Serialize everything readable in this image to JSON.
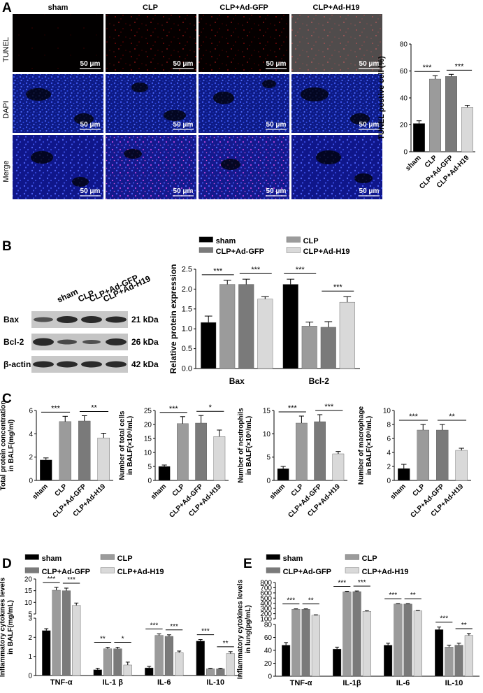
{
  "colors": {
    "sham": "#000000",
    "clp": "#9b9b9b",
    "gfp": "#7a7a7a",
    "h19": "#d9d9d9"
  },
  "panels": {
    "A": "A",
    "B": "B",
    "C": "C",
    "D": "D",
    "E": "E"
  },
  "micro": {
    "columns": [
      "sham",
      "CLP",
      "CLP+Ad-GFP",
      "CLP+Ad-H19"
    ],
    "rows": [
      "TUNEL",
      "DAPI",
      "Merge"
    ],
    "scale": "50 μm"
  },
  "legend_groups": [
    "sham",
    "CLP",
    "CLP+Ad-GFP",
    "CLP+Ad-H19"
  ],
  "western": {
    "lanes": [
      "sham",
      "CLP",
      "CLP+Ad-GFP",
      "CLP+Ad-H19"
    ],
    "proteins": [
      "Bax",
      "Bcl-2",
      "β-actin"
    ],
    "sizes": [
      "21 kDa",
      "26 kDa",
      "42 kDa"
    ]
  },
  "chart_data": [
    {
      "id": "tunel",
      "type": "bar",
      "ylabel": "TUNEL postive cell (%)",
      "categories": [
        "sham",
        "CLP",
        "CLP+Ad-GFP",
        "CLP+Ad-H19"
      ],
      "values": [
        21,
        54,
        56,
        33
      ],
      "errors": [
        2,
        2.5,
        1.5,
        1.5
      ],
      "ylim": [
        0,
        80
      ],
      "yticks": [
        0,
        20,
        40,
        60,
        80
      ],
      "sig": [
        {
          "from": 0,
          "to": 1,
          "label": "***"
        },
        {
          "from": 2,
          "to": 3,
          "label": "***"
        }
      ]
    },
    {
      "id": "protein",
      "type": "bar",
      "ylabel": "Relative protein expression",
      "categories": [
        "Bax",
        "Bcl-2"
      ],
      "series": [
        {
          "name": "sham",
          "values": [
            1.16,
            2.12
          ],
          "errors": [
            0.16,
            0.13
          ]
        },
        {
          "name": "CLP",
          "values": [
            2.12,
            1.07
          ],
          "errors": [
            0.1,
            0.1
          ]
        },
        {
          "name": "CLP+Ad-GFP",
          "values": [
            2.12,
            1.04
          ],
          "errors": [
            0.13,
            0.14
          ]
        },
        {
          "name": "CLP+Ad-H19",
          "values": [
            1.75,
            1.67
          ],
          "errors": [
            0.06,
            0.14
          ]
        }
      ],
      "ylim": [
        0,
        2.5
      ],
      "yticks": [
        0,
        0.5,
        1.0,
        1.5,
        2.0,
        2.5
      ],
      "sig": [
        {
          "cat": 0,
          "from": 0,
          "to": 1,
          "label": "***"
        },
        {
          "cat": 0,
          "from": 2,
          "to": 3,
          "label": "***"
        },
        {
          "cat": 1,
          "from": 0,
          "to": 1,
          "label": "***"
        },
        {
          "cat": 1,
          "from": 2,
          "to": 3,
          "label": "***"
        }
      ]
    },
    {
      "id": "c1",
      "type": "bar",
      "ylabel": [
        "Total protein concentration",
        "in BALF(mg/ml)"
      ],
      "categories": [
        "sham",
        "CLP",
        "CLP+Ad-GFP",
        "CLP+Ad-H19"
      ],
      "values": [
        1.75,
        5.05,
        5.1,
        3.65
      ],
      "errors": [
        0.18,
        0.45,
        0.45,
        0.4
      ],
      "ylim": [
        0,
        6
      ],
      "yticks": [
        0,
        2,
        4,
        6
      ],
      "sig": [
        {
          "from": 0,
          "to": 1,
          "label": "***"
        },
        {
          "from": 2,
          "to": 3,
          "label": "**"
        }
      ]
    },
    {
      "id": "c2",
      "type": "bar",
      "ylabel": [
        "Number of total cells",
        "in BALF(×10⁸/mL)"
      ],
      "categories": [
        "sham",
        "CLP",
        "CLP+Ad-GFP",
        "CLP+Ad-H19"
      ],
      "values": [
        5,
        20.3,
        20.5,
        15.7
      ],
      "errors": [
        0.5,
        2.5,
        2.7,
        2.3
      ],
      "ylim": [
        0,
        25
      ],
      "yticks": [
        0,
        5,
        10,
        15,
        20,
        25
      ],
      "sig": [
        {
          "from": 0,
          "to": 1,
          "label": "***"
        },
        {
          "from": 2,
          "to": 3,
          "label": "*"
        }
      ]
    },
    {
      "id": "c3",
      "type": "bar",
      "ylabel": [
        "Number of neutrophils",
        "in BALF(×10⁸/mL)"
      ],
      "categories": [
        "sham",
        "CLP",
        "CLP+Ad-GFP",
        "CLP+Ad-H19"
      ],
      "values": [
        2.5,
        12.3,
        12.6,
        5.7
      ],
      "errors": [
        0.5,
        1.5,
        1.5,
        0.5
      ],
      "ylim": [
        0,
        15
      ],
      "yticks": [
        0,
        5,
        10,
        15
      ],
      "sig": [
        {
          "from": 0,
          "to": 1,
          "label": "***"
        },
        {
          "from": 2,
          "to": 3,
          "label": "***"
        }
      ]
    },
    {
      "id": "c4",
      "type": "bar",
      "ylabel": [
        "Number of macrophage",
        "in BALF(×10⁸/mL)"
      ],
      "categories": [
        "sham",
        "CLP",
        "CLP+Ad-GFP",
        "CLP+Ad-H19"
      ],
      "values": [
        1.7,
        7.2,
        7.2,
        4.3
      ],
      "errors": [
        0.6,
        0.8,
        0.8,
        0.3
      ],
      "ylim": [
        0,
        10
      ],
      "yticks": [
        0,
        2,
        4,
        6,
        8,
        10
      ],
      "sig": [
        {
          "from": 0,
          "to": 1,
          "label": "***"
        },
        {
          "from": 2,
          "to": 3,
          "label": "**"
        }
      ]
    },
    {
      "id": "d",
      "type": "bar",
      "ylabel": [
        "Inflammatory cytokines levels",
        "in BALF(mg/mL)"
      ],
      "categories": [
        "TNF-α",
        "IL-1 β",
        "IL-6",
        "IL-10"
      ],
      "series": [
        {
          "name": "sham",
          "values": [
            2.35,
            0.3,
            0.4,
            1.8
          ],
          "errors": [
            0.1,
            0.08,
            0.08,
            0.08
          ]
        },
        {
          "name": "CLP",
          "values": [
            15.2,
            1.4,
            2.1,
            0.35
          ],
          "errors": [
            1.2,
            0.08,
            0.08,
            0.03
          ]
        },
        {
          "name": "CLP+Ad-GFP",
          "values": [
            15,
            1.4,
            2.05,
            0.35
          ],
          "errors": [
            1.1,
            0.08,
            0.08,
            0.03
          ]
        },
        {
          "name": "CLP+Ad-H19",
          "values": [
            8.7,
            0.55,
            1.2,
            1.15
          ],
          "errors": [
            1.0,
            0.15,
            0.08,
            0.1
          ]
        }
      ],
      "broken_axis": true,
      "yticks_low": [
        0,
        1,
        2,
        3
      ],
      "yticks_high": [
        5,
        10,
        15,
        20
      ],
      "sig": [
        {
          "cat": 0,
          "from": 0,
          "to": 1,
          "label": "***"
        },
        {
          "cat": 0,
          "from": 2,
          "to": 3,
          "label": "***"
        },
        {
          "cat": 1,
          "from": 0,
          "to": 1,
          "label": "**"
        },
        {
          "cat": 1,
          "from": 2,
          "to": 3,
          "label": "*"
        },
        {
          "cat": 2,
          "from": 0,
          "to": 1,
          "label": "***"
        },
        {
          "cat": 2,
          "from": 2,
          "to": 3,
          "label": "***"
        },
        {
          "cat": 3,
          "from": 0,
          "to": 1,
          "label": "***"
        },
        {
          "cat": 3,
          "from": 2,
          "to": 3,
          "label": "**"
        }
      ]
    },
    {
      "id": "e",
      "type": "bar",
      "ylabel": [
        "Inflammatory cytokines levels",
        "in lung(pg/mL)"
      ],
      "categories": [
        "TNF-α",
        "IL-1β",
        "IL-6",
        "IL-10"
      ],
      "series": [
        {
          "name": "sham",
          "values": [
            48,
            42,
            48,
            72
          ],
          "errors": [
            4,
            3,
            3,
            4
          ]
        },
        {
          "name": "CLP",
          "values": [
            285,
            620,
            385,
            45
          ],
          "errors": [
            8,
            12,
            8,
            3
          ]
        },
        {
          "name": "CLP+Ad-GFP",
          "values": [
            285,
            625,
            385,
            48
          ],
          "errors": [
            8,
            12,
            8,
            3
          ]
        },
        {
          "name": "CLP+Ad-H19",
          "values": [
            170,
            245,
            255,
            63
          ],
          "errors": [
            8,
            12,
            8,
            3
          ]
        }
      ],
      "broken_axis": true,
      "yticks_low": [
        0,
        20,
        40,
        60,
        80
      ],
      "yticks_high": [
        100,
        200,
        300,
        400,
        500,
        600,
        700,
        800
      ],
      "sig": [
        {
          "cat": 0,
          "from": 0,
          "to": 1,
          "label": "***"
        },
        {
          "cat": 0,
          "from": 2,
          "to": 3,
          "label": "**"
        },
        {
          "cat": 1,
          "from": 0,
          "to": 1,
          "label": "***"
        },
        {
          "cat": 1,
          "from": 2,
          "to": 3,
          "label": "***"
        },
        {
          "cat": 2,
          "from": 0,
          "to": 1,
          "label": "***"
        },
        {
          "cat": 2,
          "from": 2,
          "to": 3,
          "label": "**"
        },
        {
          "cat": 3,
          "from": 0,
          "to": 1,
          "label": "***"
        },
        {
          "cat": 3,
          "from": 2,
          "to": 3,
          "label": "**"
        }
      ]
    }
  ]
}
